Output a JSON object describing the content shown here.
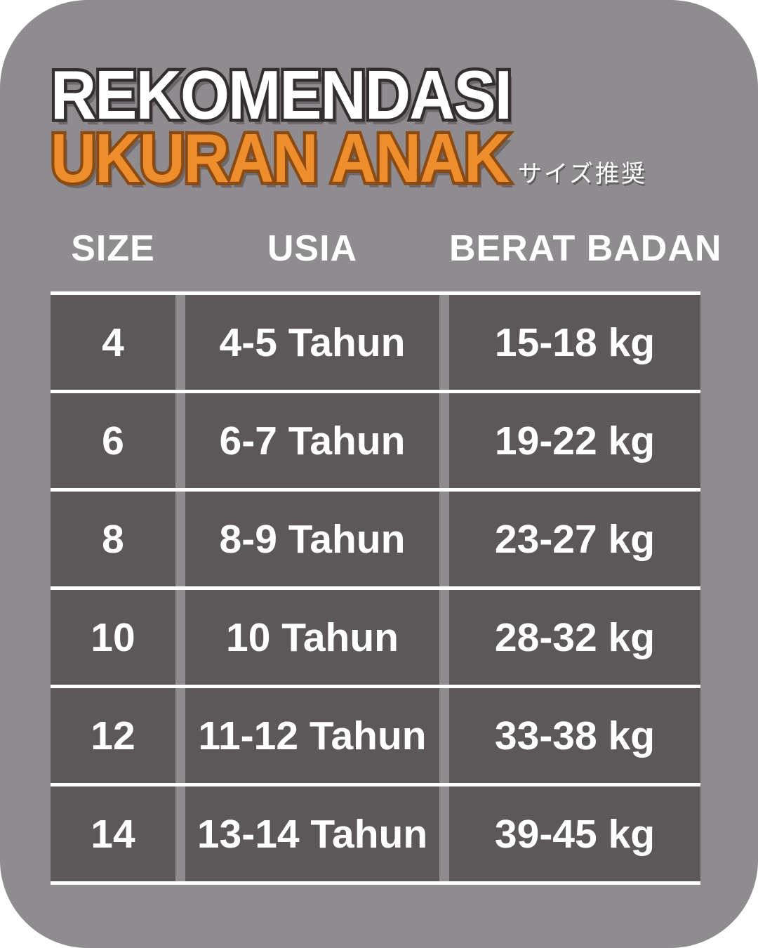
{
  "title": {
    "line1": "REKOMENDASI",
    "line2": "UKURAN ANAK",
    "subtitle_jp": "サイズ推奨"
  },
  "chart_data": {
    "type": "table",
    "title": "REKOMENDASI UKURAN ANAK",
    "subtitle": "サイズ推奨",
    "columns": [
      "SIZE",
      "USIA",
      "BERAT BADAN"
    ],
    "rows": [
      [
        "4",
        "4-5 Tahun",
        "15-18 kg"
      ],
      [
        "6",
        "6-7 Tahun",
        "19-22 kg"
      ],
      [
        "8",
        "8-9 Tahun",
        "23-27 kg"
      ],
      [
        "10",
        "10 Tahun",
        "28-32 kg"
      ],
      [
        "12",
        "11-12 Tahun",
        "33-38 kg"
      ],
      [
        "14",
        "13-14 Tahun",
        "39-45 kg"
      ]
    ],
    "layout": {
      "header_outside_table": true,
      "row_separator": "white horizontal lines",
      "column_separator": "background-colored gutters"
    }
  },
  "colors": {
    "card_background": "#8e8c8e",
    "cell_background": "#5c585a",
    "accent_orange": "#ee8d2b",
    "title_outline": "#332f31",
    "orange_outline": "#8a4a14",
    "row_line": "#ffffff",
    "text_white": "#ffffff"
  }
}
